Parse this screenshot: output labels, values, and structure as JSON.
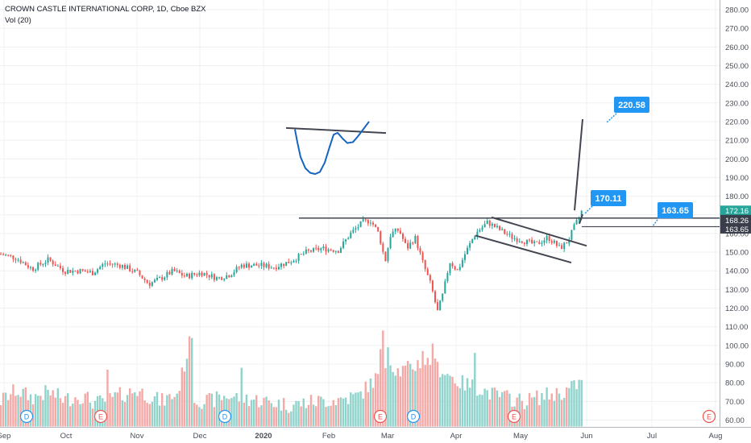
{
  "header": {
    "title": "CROWN CASTLE INTERNATIONAL CORP, 1D, Cboe BZX",
    "volume_indicator": "Vol (20)"
  },
  "colors": {
    "up": "#26a69a",
    "down": "#ef5350",
    "vol_up": "#8fd3cb",
    "vol_down": "#f4a9a7",
    "drawing": "#434651",
    "cup": "#1565c0",
    "callout": "#2196f3",
    "grid": "#eef0f3",
    "axis_text": "#4a4e59"
  },
  "chart_data": {
    "type": "candlestick",
    "title": "CROWN CASTLE INTERNATIONAL CORP, 1D, Cboe BZX",
    "xlabel": "",
    "ylabel": "",
    "y_ticks": [
      60,
      70,
      80,
      90,
      100,
      110,
      120,
      130,
      140,
      150,
      160,
      170,
      180,
      190,
      200,
      210,
      220,
      230,
      240,
      250,
      260,
      270,
      280
    ],
    "y_tick_labels": [
      "60.00",
      "70.00",
      "80.00",
      "90.00",
      "100.00",
      "110.00",
      "120.00",
      "130.00",
      "140.00",
      "150.00",
      "160.00",
      "170.00",
      "180.00",
      "190.00",
      "200.00",
      "210.00",
      "220.00",
      "230.00",
      "240.00",
      "250.00",
      "260.00",
      "270.00",
      "280.00"
    ],
    "ylim": [
      57,
      284
    ],
    "x_tick_labels": [
      "Sep",
      "Oct",
      "Nov",
      "Dec",
      "2020",
      "Feb",
      "Mar",
      "Apr",
      "May",
      "Jun",
      "Jul",
      "Aug"
    ],
    "price_path": [
      [
        0,
        149
      ],
      [
        20,
        147
      ],
      [
        40,
        141
      ],
      [
        60,
        146
      ],
      [
        80,
        140
      ],
      [
        100,
        140
      ],
      [
        115,
        139
      ],
      [
        130,
        144
      ],
      [
        150,
        143
      ],
      [
        170,
        139
      ],
      [
        185,
        133
      ],
      [
        200,
        136
      ],
      [
        215,
        140
      ],
      [
        230,
        137
      ],
      [
        250,
        139
      ],
      [
        270,
        136
      ],
      [
        285,
        138
      ],
      [
        300,
        143
      ],
      [
        320,
        143
      ],
      [
        340,
        142
      ],
      [
        360,
        145
      ],
      [
        380,
        150
      ],
      [
        400,
        152
      ],
      [
        420,
        151
      ],
      [
        435,
        160
      ],
      [
        450,
        166
      ],
      [
        460,
        167
      ],
      [
        470,
        160
      ],
      [
        478,
        145
      ],
      [
        485,
        160
      ],
      [
        495,
        162
      ],
      [
        505,
        152
      ],
      [
        515,
        158
      ],
      [
        525,
        144
      ],
      [
        535,
        132
      ],
      [
        543,
        118
      ],
      [
        550,
        128
      ],
      [
        558,
        145
      ],
      [
        568,
        140
      ],
      [
        578,
        150
      ],
      [
        590,
        160
      ],
      [
        605,
        166
      ],
      [
        620,
        162
      ],
      [
        635,
        158
      ],
      [
        650,
        156
      ],
      [
        665,
        154
      ],
      [
        680,
        158
      ],
      [
        695,
        152
      ],
      [
        705,
        156
      ],
      [
        712,
        163
      ],
      [
        718,
        168
      ],
      [
        722,
        172
      ]
    ],
    "volume_path": [
      [
        0,
        70
      ],
      [
        20,
        76
      ],
      [
        40,
        72
      ],
      [
        60,
        75
      ],
      [
        80,
        71
      ],
      [
        100,
        73
      ],
      [
        120,
        69
      ],
      [
        140,
        72
      ],
      [
        170,
        76
      ],
      [
        200,
        70
      ],
      [
        220,
        74
      ],
      [
        237,
        104
      ],
      [
        240,
        71
      ],
      [
        260,
        70
      ],
      [
        280,
        73
      ],
      [
        300,
        72
      ],
      [
        330,
        70
      ],
      [
        360,
        68
      ],
      [
        390,
        70
      ],
      [
        420,
        71
      ],
      [
        445,
        73
      ],
      [
        470,
        84
      ],
      [
        480,
        92
      ],
      [
        495,
        86
      ],
      [
        510,
        88
      ],
      [
        525,
        92
      ],
      [
        540,
        89
      ],
      [
        555,
        85
      ],
      [
        570,
        80
      ],
      [
        590,
        78
      ],
      [
        610,
        74
      ],
      [
        630,
        72
      ],
      [
        650,
        70
      ],
      [
        675,
        73
      ],
      [
        700,
        75
      ],
      [
        720,
        80
      ]
    ],
    "volume_spikes": [
      [
        237,
        104
      ],
      [
        475,
        108
      ],
      [
        473,
        98
      ],
      [
        481,
        99
      ],
      [
        536,
        101
      ],
      [
        525,
        97
      ],
      [
        588,
        96
      ],
      [
        299,
        88
      ],
      [
        132,
        87
      ]
    ],
    "last_price": 172.16,
    "price_labels": [
      {
        "value": 172.16,
        "text": "172.16",
        "bg": "#26a69a"
      },
      {
        "value": 168.26,
        "text": "168.26",
        "bg": "#3a3e4a"
      },
      {
        "value": 163.65,
        "text": "163.65",
        "bg": "#3a3e4a"
      }
    ],
    "annotations": [
      {
        "text": "220.58",
        "price": 220.58
      },
      {
        "text": "170.11",
        "price": 170.11
      },
      {
        "text": "163.65",
        "price": 163.65
      }
    ],
    "event_markers": [
      "D",
      "E",
      "D",
      "E",
      "D",
      "E",
      "E"
    ],
    "legend": "none"
  }
}
